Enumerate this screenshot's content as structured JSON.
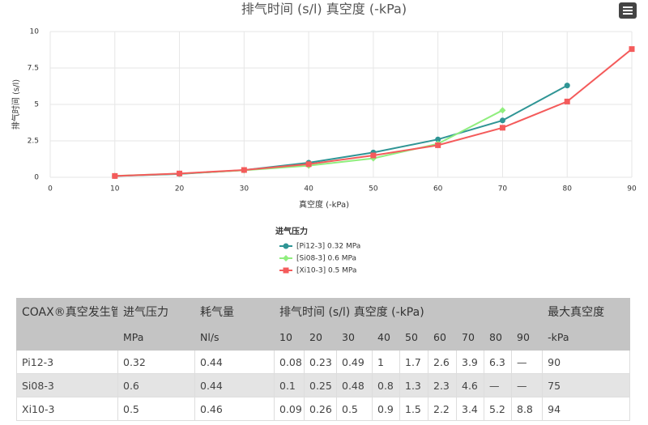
{
  "chart_data": {
    "type": "line",
    "title": "排气时间 (s/l) 真空度 (-kPa)",
    "x_label": "真空度 (-kPa)",
    "y_label": "排气时间 (s/l)",
    "legend_title": "进气压力",
    "x": [
      10,
      20,
      30,
      40,
      50,
      60,
      70,
      80,
      90
    ],
    "series": [
      {
        "name": "[Pi12-3] 0.32 MPa",
        "color": "#2f9595",
        "marker": "circle",
        "values": [
          0.08,
          0.23,
          0.49,
          1,
          1.7,
          2.6,
          3.9,
          6.3,
          null
        ]
      },
      {
        "name": "[Si08-3] 0.6 MPa",
        "color": "#90ee7e",
        "marker": "diamond",
        "values": [
          0.1,
          0.25,
          0.48,
          0.8,
          1.3,
          2.3,
          4.6,
          null,
          null
        ]
      },
      {
        "name": "[Xi10-3] 0.5 MPa",
        "color": "#f45b5b",
        "marker": "square",
        "values": [
          0.09,
          0.26,
          0.5,
          0.9,
          1.5,
          2.2,
          3.4,
          5.2,
          8.8
        ]
      }
    ],
    "xlim": [
      0,
      90
    ],
    "xticks": [
      0,
      10,
      20,
      30,
      40,
      50,
      60,
      70,
      80,
      90
    ],
    "ylim": [
      0,
      10
    ],
    "yticks": [
      0,
      2.5,
      5,
      7.5,
      10
    ],
    "grid": true
  },
  "table": {
    "header_row1": [
      "COAX®真空发生管",
      "进气压力",
      "耗气量",
      "排气时间 (s/l) 真空度 (-kPa)",
      "最大真空度"
    ],
    "header_row2": [
      "MPa",
      "Nl/s",
      "10",
      "20",
      "30",
      "40",
      "50",
      "60",
      "70",
      "80",
      "90",
      "-kPa"
    ],
    "rows": [
      [
        "Pi12-3",
        0.32,
        0.44,
        0.08,
        0.23,
        0.49,
        1,
        1.7,
        2.6,
        3.9,
        6.3,
        "—",
        90
      ],
      [
        "Si08-3",
        0.6,
        0.44,
        0.1,
        0.25,
        0.48,
        0.8,
        1.3,
        2.3,
        4.6,
        "—",
        "—",
        75
      ],
      [
        "Xi10-3",
        0.5,
        0.46,
        0.09,
        0.26,
        0.5,
        0.9,
        1.5,
        2.2,
        3.4,
        5.2,
        8.8,
        94
      ]
    ]
  }
}
